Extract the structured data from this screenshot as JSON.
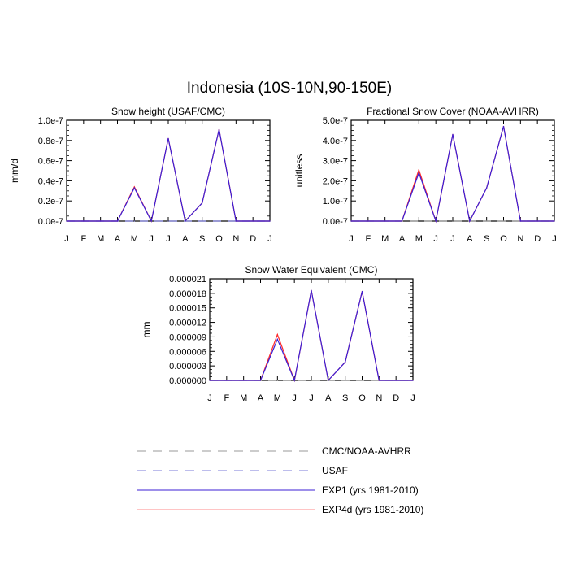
{
  "title": "Indonesia (10S-10N,90-150E)",
  "colors": {
    "exp1": "#3b1fd6",
    "exp4d": "#ff2a2a",
    "obs_dash": "#9a9a9a",
    "usaf_dash": "#7b7bd8",
    "axis": "#000000"
  },
  "chart_data": [
    {
      "type": "line",
      "title": "Snow height (USAF/CMC)",
      "ylabel": "mm/d",
      "xlabel": "",
      "categories": [
        "J",
        "F",
        "M",
        "A",
        "M",
        "J",
        "J",
        "A",
        "S",
        "O",
        "N",
        "D",
        "J"
      ],
      "ylim": [
        0,
        1e-07
      ],
      "yticks": [
        0,
        2e-08,
        4e-08,
        6e-08,
        8e-08,
        1e-07
      ],
      "yticklabels": [
        "0.0e-7",
        "0.2e-7",
        "0.4e-7",
        "0.6e-7",
        "0.8e-7",
        "1.0e-7"
      ],
      "series": [
        {
          "name": "EXP4d (yrs 1981-2010)",
          "values": [
            0,
            0,
            0,
            0,
            3.4e-08,
            0,
            8.2e-08,
            0,
            1.8e-08,
            9.1e-08,
            0,
            0,
            0
          ]
        },
        {
          "name": "EXP1 (yrs 1981-2010)",
          "values": [
            0,
            0,
            0,
            0,
            3.3e-08,
            0,
            8.2e-08,
            0,
            1.8e-08,
            9.1e-08,
            0,
            0,
            0
          ]
        },
        {
          "name": "USAF",
          "values": [
            0,
            0,
            0,
            0,
            0,
            0,
            0,
            0,
            0,
            0,
            0,
            0,
            0
          ]
        }
      ]
    },
    {
      "type": "line",
      "title": "Fractional Snow Cover (NOAA-AVHRR)",
      "ylabel": "unitless",
      "xlabel": "",
      "categories": [
        "J",
        "F",
        "M",
        "A",
        "M",
        "J",
        "J",
        "A",
        "S",
        "O",
        "N",
        "D",
        "J"
      ],
      "ylim": [
        0,
        5e-07
      ],
      "yticks": [
        0,
        1e-07,
        2e-07,
        3e-07,
        4e-07,
        5e-07
      ],
      "yticklabels": [
        "0.0e-7",
        "1.0e-7",
        "2.0e-7",
        "3.0e-7",
        "4.0e-7",
        "5.0e-7"
      ],
      "series": [
        {
          "name": "EXP4d (yrs 1981-2010)",
          "values": [
            0,
            0,
            0,
            0,
            2.55e-07,
            0,
            4.3e-07,
            0,
            1.65e-07,
            4.7e-07,
            0,
            0,
            0
          ]
        },
        {
          "name": "EXP1 (yrs 1981-2010)",
          "values": [
            0,
            0,
            0,
            0,
            2.4e-07,
            0,
            4.3e-07,
            0,
            1.65e-07,
            4.7e-07,
            0,
            0,
            0
          ]
        },
        {
          "name": "CMC/NOAA-AVHRR",
          "values": [
            0,
            0,
            0,
            0,
            0,
            0,
            0,
            0,
            0,
            0,
            0,
            0,
            0
          ]
        }
      ]
    },
    {
      "type": "line",
      "title": "Snow Water Equivalent (CMC)",
      "ylabel": "mm",
      "xlabel": "",
      "categories": [
        "J",
        "F",
        "M",
        "A",
        "M",
        "J",
        "J",
        "A",
        "S",
        "O",
        "N",
        "D",
        "J"
      ],
      "ylim": [
        0,
        2.1e-05
      ],
      "yticks": [
        0,
        3e-06,
        6e-06,
        9e-06,
        1.2e-05,
        1.5e-05,
        1.8e-05,
        2.1e-05
      ],
      "yticklabels": [
        "0.000000",
        "0.000003",
        "0.000006",
        "0.000009",
        "0.000012",
        "0.000015",
        "0.000018",
        "0.000021"
      ],
      "series": [
        {
          "name": "EXP4d (yrs 1981-2010)",
          "values": [
            0,
            0,
            0,
            0,
            9.5e-06,
            0,
            1.86e-05,
            0,
            3.8e-06,
            1.84e-05,
            0,
            0,
            0
          ]
        },
        {
          "name": "EXP1 (yrs 1981-2010)",
          "values": [
            0,
            0,
            0,
            0,
            8.5e-06,
            0,
            1.86e-05,
            0,
            3.8e-06,
            1.84e-05,
            0,
            0,
            0
          ]
        },
        {
          "name": "CMC/NOAA-AVHRR",
          "values": [
            0,
            0,
            0,
            0,
            0,
            0,
            0,
            0,
            0,
            0,
            0,
            0,
            0
          ]
        }
      ]
    }
  ],
  "legend": [
    {
      "label": "CMC/NOAA-AVHRR",
      "style": "dashed",
      "color": "#9a9a9a"
    },
    {
      "label": "USAF",
      "style": "dashed",
      "color": "#7b7bd8"
    },
    {
      "label": "EXP1 (yrs 1981-2010)",
      "style": "solid",
      "color": "#3b1fd6"
    },
    {
      "label": "EXP4d (yrs 1981-2010)",
      "style": "solid",
      "color": "#ff8a8a"
    }
  ]
}
